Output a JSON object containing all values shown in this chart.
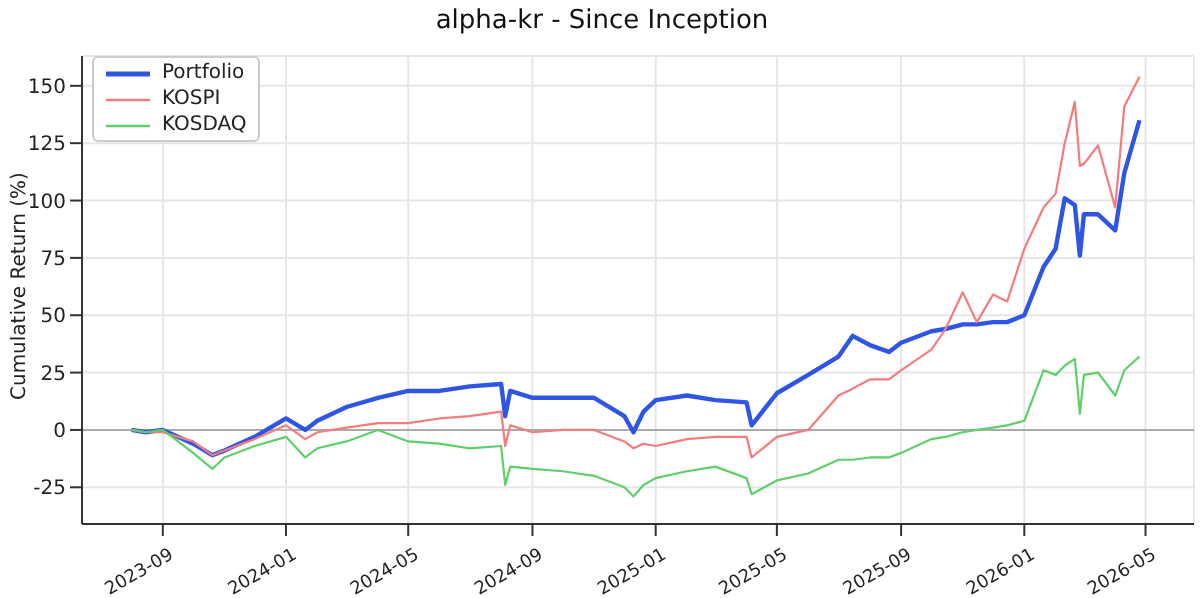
{
  "chart_data": {
    "type": "line",
    "title": "alpha-kr - Since Inception",
    "ylabel": "Cumulative Return (%)",
    "x": [
      "2023-08-01",
      "2023-08-15",
      "2023-09-01",
      "2023-10-01",
      "2023-10-20",
      "2023-11-01",
      "2023-12-01",
      "2024-01-01",
      "2024-01-20",
      "2024-02-01",
      "2024-03-01",
      "2024-04-01",
      "2024-05-01",
      "2024-06-01",
      "2024-07-01",
      "2024-08-01",
      "2024-08-05",
      "2024-08-10",
      "2024-09-01",
      "2024-10-01",
      "2024-11-01",
      "2024-12-01",
      "2024-12-10",
      "2024-12-20",
      "2025-01-01",
      "2025-02-01",
      "2025-03-01",
      "2025-04-01",
      "2025-04-06",
      "2025-05-01",
      "2025-06-01",
      "2025-07-01",
      "2025-07-15",
      "2025-08-01",
      "2025-08-20",
      "2025-09-01",
      "2025-10-01",
      "2025-10-15",
      "2025-11-01",
      "2025-11-15",
      "2025-12-01",
      "2025-12-15",
      "2026-01-01",
      "2026-01-20",
      "2026-02-01",
      "2026-02-10",
      "2026-02-20",
      "2026-02-25",
      "2026-03-01",
      "2026-03-15",
      "2026-04-01",
      "2026-04-10",
      "2026-04-25"
    ],
    "series": [
      {
        "name": "Portfolio",
        "color": "#2f55e4",
        "values": [
          0,
          -1,
          0,
          -6,
          -11,
          -9,
          -3,
          5,
          0,
          4,
          10,
          14,
          17,
          17,
          19,
          20,
          6,
          17,
          14,
          14,
          14,
          6,
          -1,
          8,
          13,
          15,
          13,
          12,
          2,
          16,
          24,
          32,
          41,
          37,
          34,
          38,
          43,
          44,
          46,
          46,
          47,
          47,
          50,
          71,
          79,
          101,
          98,
          76,
          94,
          94,
          87,
          112,
          135
        ]
      },
      {
        "name": "KOSPI",
        "color": "#f47c7c",
        "values": [
          0,
          -1,
          -1,
          -5,
          -11,
          -9,
          -4,
          2,
          -4,
          -1,
          1,
          3,
          3,
          5,
          6,
          8,
          -7,
          2,
          -1,
          0,
          0,
          -5,
          -8,
          -6,
          -7,
          -4,
          -3,
          -3,
          -12,
          -3,
          0,
          15,
          18,
          22,
          22,
          26,
          35,
          44,
          60,
          47,
          59,
          56,
          79,
          97,
          103,
          125,
          143,
          115,
          116,
          124,
          97,
          141,
          154
        ]
      },
      {
        "name": "KOSDAQ",
        "color": "#5fcf6a",
        "values": [
          0,
          -1,
          0,
          -10,
          -17,
          -12,
          -7,
          -3,
          -12,
          -8,
          -5,
          0,
          -5,
          -6,
          -8,
          -7,
          -24,
          -16,
          -17,
          -18,
          -20,
          -25,
          -29,
          -24,
          -21,
          -18,
          -16,
          -21,
          -28,
          -22,
          -19,
          -13,
          -13,
          -12,
          -12,
          -10,
          -4,
          -3,
          -1,
          0,
          1,
          2,
          4,
          26,
          24,
          28,
          31,
          7,
          24,
          25,
          15,
          26,
          32
        ]
      }
    ],
    "xlim": [
      "2023-06-13",
      "2026-06-18"
    ],
    "xticks": [
      "2023-09",
      "2024-01",
      "2024-05",
      "2024-09",
      "2025-01",
      "2025-05",
      "2025-09",
      "2026-01",
      "2026-05"
    ],
    "ylim": [
      -41,
      163
    ],
    "yticks": [
      -25,
      0,
      25,
      50,
      75,
      100,
      125,
      150
    ],
    "ref_lines": [
      {
        "axis": "y",
        "value": 0,
        "color": "#aaaaaa"
      }
    ],
    "grid": true,
    "legend": "top left",
    "marker": "none",
    "line_style": "solid"
  }
}
